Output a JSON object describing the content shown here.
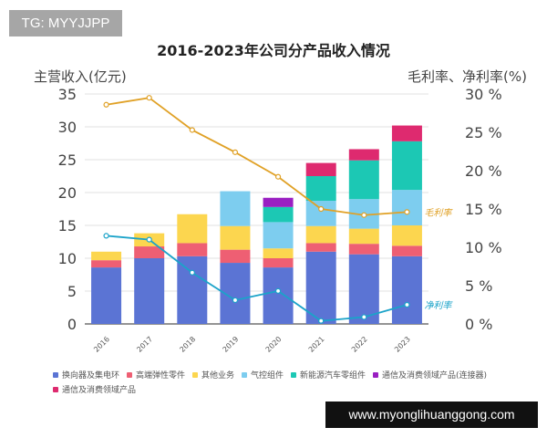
{
  "badge": "TG: MYYJJPP",
  "banner": "www.myonglihuanggong.com",
  "chart_data": {
    "type": "bar",
    "stacked": true,
    "title": "2016-2023年公司分产品收入情况",
    "ylabel": "主营收入(亿元)",
    "y2label": "毛利率、净利率(%)",
    "ylim": [
      0,
      35
    ],
    "y2lim": [
      0,
      30
    ],
    "yticks": [
      "0",
      "5",
      "10",
      "15",
      "20",
      "25",
      "30",
      "35"
    ],
    "y2ticks": [
      "0 %",
      "5 %",
      "10 %",
      "15 %",
      "20 %",
      "25 %",
      "30 %"
    ],
    "grid": true,
    "legend_position": "bottom",
    "categories": [
      "2016",
      "2017",
      "2018",
      "2019",
      "2020",
      "2021",
      "2022",
      "2023"
    ],
    "series": [
      {
        "name": "换向器及集电环",
        "color": "#5b74d4",
        "values": [
          8.6,
          10.0,
          10.3,
          9.3,
          8.6,
          11.0,
          10.6,
          10.3
        ]
      },
      {
        "name": "高端弹性零件",
        "color": "#ee5f73",
        "values": [
          1.1,
          1.8,
          2.0,
          2.0,
          1.4,
          1.3,
          1.6,
          1.6
        ]
      },
      {
        "name": "其他业务",
        "color": "#fcd64f",
        "values": [
          1.3,
          2.0,
          4.4,
          3.6,
          1.5,
          2.6,
          2.3,
          3.1
        ]
      },
      {
        "name": "气控组件",
        "color": "#7dcdef",
        "values": [
          0,
          0,
          0,
          5.3,
          4.0,
          3.85,
          4.5,
          5.4
        ]
      },
      {
        "name": "新能源汽车零组件",
        "color": "#1cc8b4",
        "values": [
          0,
          0,
          0,
          0,
          2.3,
          3.75,
          5.9,
          7.4
        ]
      },
      {
        "name": "通信及消费领域产品(连接器)",
        "color": "#9a1fc2",
        "values": [
          0,
          0,
          0,
          0,
          1.4,
          0,
          0,
          0
        ]
      },
      {
        "name": "通信及消费领域产品",
        "color": "#de2a6f",
        "values": [
          0,
          0,
          0,
          0,
          0,
          2.0,
          1.7,
          2.4
        ]
      }
    ],
    "lines": [
      {
        "name": "毛利率",
        "axis": "right",
        "color": "#e0a126",
        "values": [
          28.6,
          29.5,
          25.3,
          22.4,
          19.2,
          15.0,
          14.2,
          14.6
        ]
      },
      {
        "name": "净利率",
        "axis": "right",
        "color": "#1ba3c9",
        "values": [
          11.5,
          11.0,
          6.7,
          3.1,
          4.3,
          0.4,
          0.9,
          2.5
        ]
      }
    ]
  }
}
